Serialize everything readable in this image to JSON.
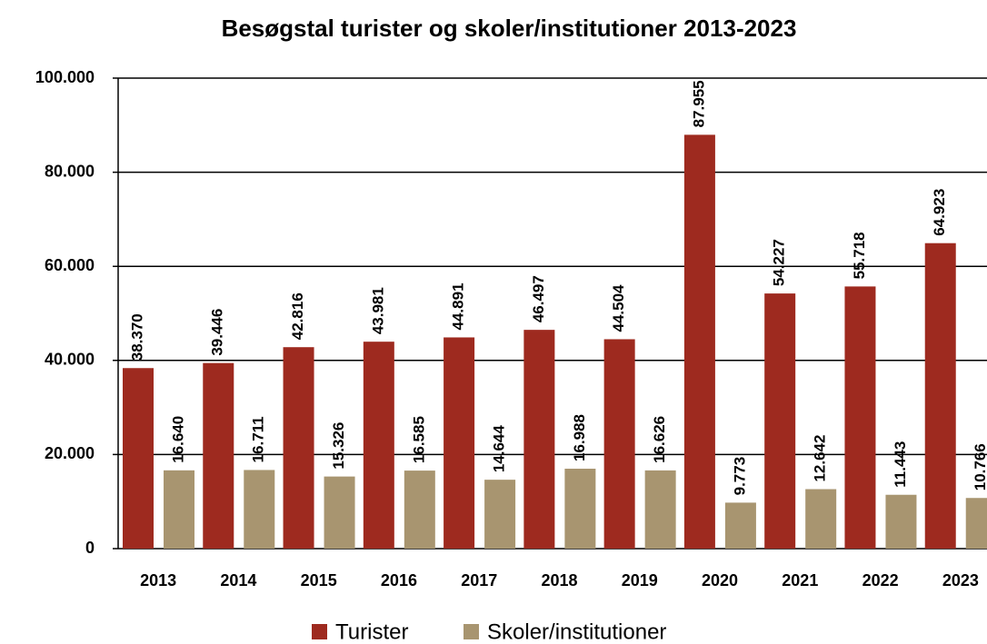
{
  "chart_data": {
    "type": "bar",
    "title": "Besøgstal turister og skoler/institutioner 2013-2023",
    "categories": [
      "2013",
      "2014",
      "2015",
      "2016",
      "2017",
      "2018",
      "2019",
      "2020",
      "2021",
      "2022",
      "2023"
    ],
    "series": [
      {
        "name": "Turister",
        "color": "#9e2a1f",
        "values": [
          38370,
          39446,
          42816,
          43981,
          44891,
          46497,
          44504,
          87955,
          54227,
          55718,
          64923
        ],
        "value_labels": [
          "38.370",
          "39.446",
          "42.816",
          "43.981",
          "44.891",
          "46.497",
          "44.504",
          "87.955",
          "54.227",
          "55.718",
          "64.923"
        ]
      },
      {
        "name": "Skoler/institutioner",
        "color": "#a89570",
        "values": [
          16640,
          16711,
          15326,
          16585,
          14644,
          16988,
          16626,
          9773,
          12642,
          11443,
          10766
        ],
        "value_labels": [
          "16.640",
          "16.711",
          "15.326",
          "16.585",
          "14.644",
          "16.988",
          "16.626",
          "9.773",
          "12.642",
          "11.443",
          "10.766"
        ]
      }
    ],
    "ylim": [
      0,
      100000
    ],
    "yticks": [
      0,
      {
        "value": 20000,
        "label": "20.000"
      },
      {
        "value": 40000,
        "label": "40.000"
      },
      {
        "value": 60000,
        "label": "60.000"
      },
      {
        "value": 80000,
        "label": "80.000"
      },
      {
        "value": 100000,
        "label": "100.000"
      }
    ],
    "grid": true,
    "legend": "bottom"
  }
}
